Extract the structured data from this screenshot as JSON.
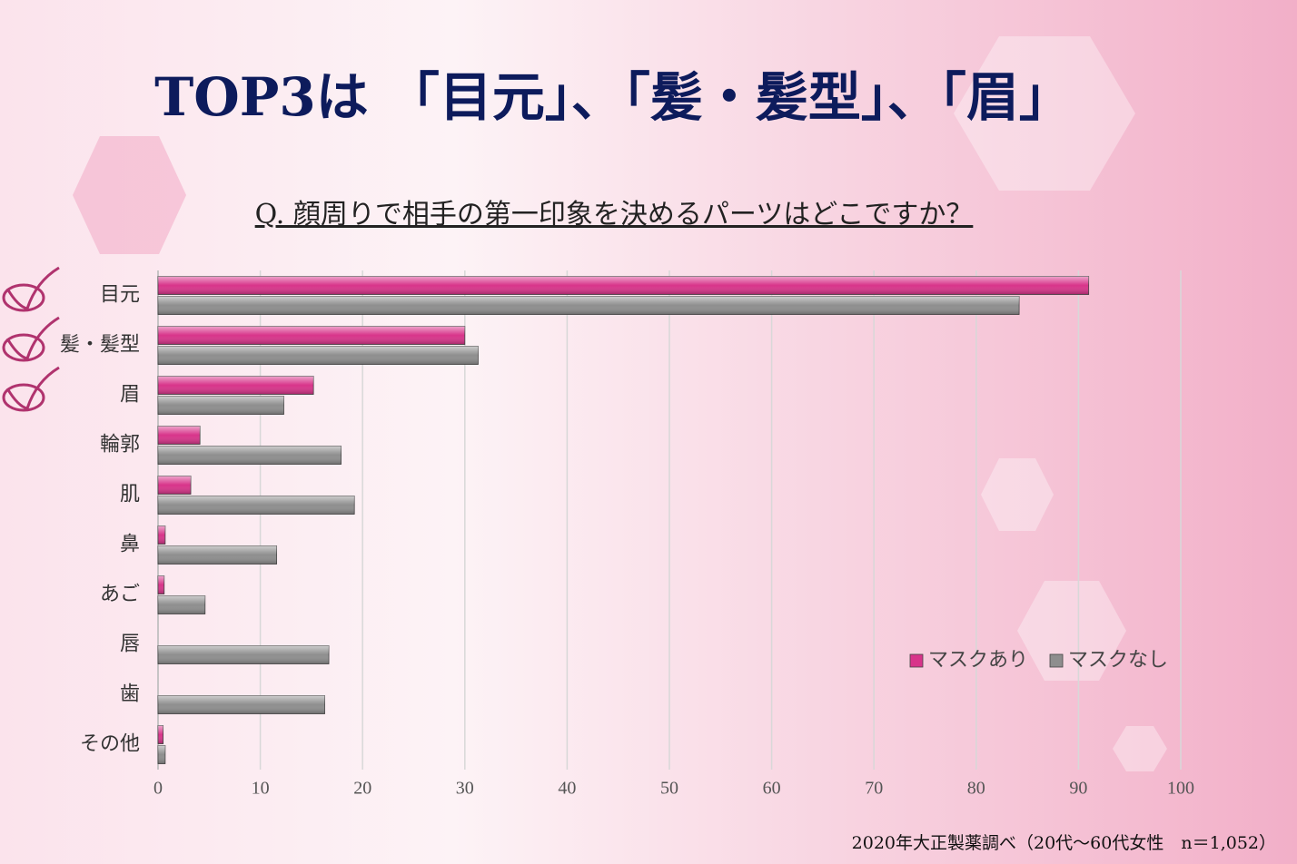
{
  "chart_data": {
    "type": "hbar",
    "title": "TOP3は 「目元」、「髪・髪型」、「眉」",
    "subtitle": "Q. 顔周りで相手の第一印象を決めるパーツはどこですか？",
    "note": "2020年大正製薬調べ（20代～60代女性　n＝1,052）",
    "categories": [
      "目元",
      "髪・髪型",
      "眉",
      "輪郭",
      "肌",
      "鼻",
      "あご",
      "唇",
      "歯",
      "その他"
    ],
    "series": [
      {
        "name": "マスクあり",
        "color": "#d8348a",
        "values": [
          91.0,
          30.0,
          15.2,
          4.1,
          3.2,
          0.7,
          0.6,
          0,
          0,
          0.5
        ]
      },
      {
        "name": "マスクなし",
        "color": "#8e8e8e",
        "values": [
          84.2,
          31.3,
          12.3,
          17.9,
          19.2,
          11.6,
          4.6,
          16.7,
          16.3,
          0.7
        ]
      }
    ],
    "xlim": [
      0,
      100
    ],
    "xticks": [
      0,
      10,
      20,
      30,
      40,
      50,
      60,
      70,
      80,
      90,
      100
    ],
    "grid": true,
    "legend": "bottom-right"
  }
}
